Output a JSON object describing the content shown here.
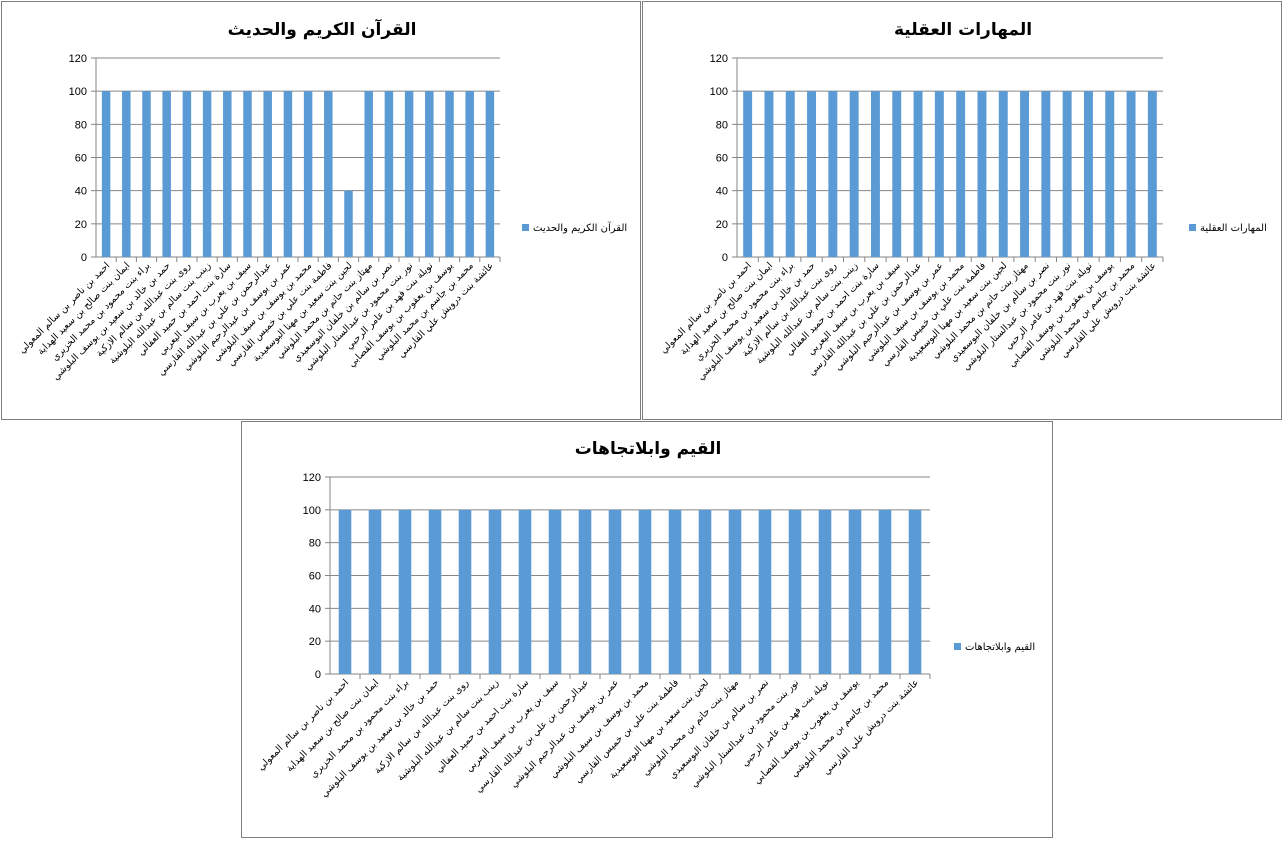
{
  "chart_data": [
    {
      "type": "bar",
      "title": "القرآن الكريم والحديث",
      "categories": [
        "احمد بن ناصر بن سالم المعولي",
        "ايمان بنت صالح بن سعيد الهداية",
        "براء بنت محمود بن محمد الخزيري",
        "حمد بن خالد بن سعيد بن يوسف البلوشي",
        "روى بنت عبدالله بن سالم الازكية",
        "زينب بنت سالم بن عبدالله البلوشية",
        "سارة بنت احمد بن حميد العفالي",
        "سيف بن يعرب بن سيف اليعربي",
        "عبدالرحمن بن علي بن عبدالله القارسي",
        "عمر بن يوسف بن عبدالرحيم البلوشي",
        "محمد بن يوسف بن سيف البلوشي",
        "فاطمة بنت علي بن خميس القارسي",
        "لجين بنت سعيد بن مهنا البوسعيدية",
        "مهتاز بنت حاتم بن محمد البلوشي",
        "نصر بن سالم بن خلفان البوسعيدي",
        "نور بنت محمود بن عبدالستار البلوشي",
        "نويلة بنت فهد بن عامر الرحبي",
        "يوسف بن يعقوب بن يوسف القصابي",
        "محمد بن جاسم بن محمد البلوشي",
        "عائشة بنت درويش علي القارسي"
      ],
      "series": [
        {
          "name": "القرآن الكريم والحديث",
          "values": [
            100,
            100,
            100,
            100,
            100,
            100,
            100,
            100,
            100,
            100,
            100,
            100,
            40,
            100,
            100,
            100,
            100,
            100,
            100,
            100
          ]
        }
      ],
      "ylim": [
        0,
        120
      ],
      "yticks": [
        "0",
        "20",
        "40",
        "60",
        "80",
        "100",
        "120"
      ],
      "legend_position": "right",
      "grid": true,
      "bar_color": "#5B9BD5"
    },
    {
      "type": "bar",
      "title": "المهارات العقلية",
      "categories": [
        "احمد بن ناصر بن سالم المعولي",
        "ايمان بنت صالح بن سعيد الهداية",
        "براء بنت محمود بن محمد الخزيري",
        "حمد بن خالد بن سعيد بن يوسف البلوشي",
        "روى بنت عبدالله بن سالم الازكية",
        "زينب بنت سالم بن عبدالله البلوشية",
        "سارة بنت احمد بن حميد العفالي",
        "سيف بن يعرب بن سيف اليعربي",
        "عبدالرحمن بن علي بن عبدالله القارسي",
        "عمر بن يوسف بن عبدالرحيم البلوشي",
        "محمد بن يوسف بن سيف البلوشي",
        "فاطمة بنت علي بن خميس القارسي",
        "لجين بنت سعيد بن مهنا البوسعيدية",
        "مهتاز بنت حاتم بن محمد البلوشي",
        "نصر بن سالم بن خلفان البوسعيدي",
        "نور بنت محمود بن عبدالستار البلوشي",
        "نويلة بنت فهد بن عامر الرحبي",
        "يوسف بن يعقوب بن يوسف القصابي",
        "محمد بن جاسم بن محمد البلوشي",
        "عائشة بنت درويش علي القارسي"
      ],
      "series": [
        {
          "name": "المهارات العقلية",
          "values": [
            100,
            100,
            100,
            100,
            100,
            100,
            100,
            100,
            100,
            100,
            100,
            100,
            100,
            100,
            100,
            100,
            100,
            100,
            100,
            100
          ]
        }
      ],
      "ylim": [
        0,
        120
      ],
      "yticks": [
        "0",
        "20",
        "40",
        "60",
        "80",
        "100",
        "120"
      ],
      "legend_position": "right",
      "grid": true,
      "bar_color": "#5B9BD5"
    },
    {
      "type": "bar",
      "title": "القيم وابلاتجاهات",
      "categories": [
        "احمد بن ناصر بن سالم المعولي",
        "ايمان بنت صالح بن سعيد الهداية",
        "براء بنت محمود بن محمد الخزيري",
        "حمد بن خالد بن سعيد بن يوسف البلوشي",
        "روى بنت عبدالله بن سالم الازكية",
        "زينب بنت سالم بن عبدالله البلوشية",
        "سارة بنت احمد بن حميد العفالي",
        "سيف بن يعرب بن سيف اليعربي",
        "عبدالرحمن بن علي بن عبدالله القارسي",
        "عمر بن يوسف بن عبدالرحيم البلوشي",
        "محمد بن يوسف بن سيف البلوشي",
        "فاطمة بنت علي بن خميس القارسي",
        "لجين بنت سعيد بن مهنا البوسعيدية",
        "مهتاز بنت حاتم بن محمد البلوشي",
        "نصر بن سالم بن خلفان البوسعيدي",
        "نور بنت محمود بن عبدالستار البلوشي",
        "نويلة بنت فهد بن عامر الرحبي",
        "يوسف بن يعقوب بن يوسف القصابي",
        "محمد بن جاسم بن محمد البلوشي",
        "عائشة بنت درويش علي القارسي"
      ],
      "series": [
        {
          "name": "القيم وابلاتجاهات",
          "values": [
            100,
            100,
            100,
            100,
            100,
            100,
            100,
            100,
            100,
            100,
            100,
            100,
            100,
            100,
            100,
            100,
            100,
            100,
            100,
            100
          ]
        }
      ],
      "ylim": [
        0,
        120
      ],
      "yticks": [
        "0",
        "20",
        "40",
        "60",
        "80",
        "100",
        "120"
      ],
      "legend_position": "right",
      "grid": true,
      "bar_color": "#5B9BD5"
    }
  ]
}
